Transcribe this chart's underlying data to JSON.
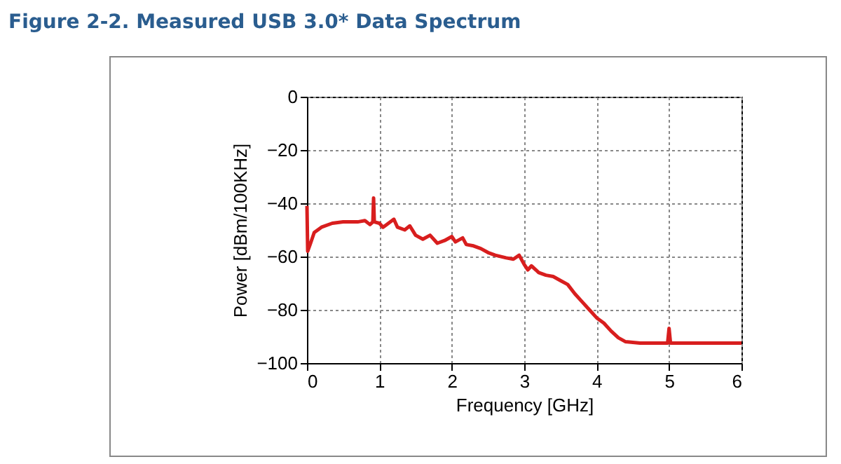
{
  "chart_data": {
    "type": "line",
    "title": "Figure 2-2. Measured USB 3.0* Data Spectrum",
    "xlabel": "Frequency [GHz]",
    "ylabel": "Power [dBm/100KHz]",
    "x": [
      0,
      0.01,
      0.05,
      0.1,
      0.2,
      0.35,
      0.5,
      0.7,
      0.8,
      0.87,
      0.91,
      0.92,
      0.93,
      1.0,
      1.05,
      1.1,
      1.2,
      1.25,
      1.35,
      1.42,
      1.5,
      1.6,
      1.7,
      1.8,
      1.9,
      2.0,
      2.05,
      2.15,
      2.2,
      2.3,
      2.4,
      2.5,
      2.6,
      2.75,
      2.85,
      2.93,
      3.0,
      3.05,
      3.1,
      3.2,
      3.3,
      3.4,
      3.5,
      3.6,
      3.7,
      3.8,
      3.9,
      4.0,
      4.1,
      4.2,
      4.3,
      4.4,
      4.6,
      4.9,
      4.98,
      5.0,
      5.02,
      5.3,
      5.6,
      6.0
    ],
    "series": [
      {
        "color": "#d81e1e",
        "values": [
          -41,
          -58,
          -55,
          -51,
          -49,
          -47.5,
          -47,
          -47,
          -46.5,
          -48,
          -47,
          -38,
          -47,
          -47.5,
          -49,
          -48,
          -46,
          -49,
          -50,
          -48.5,
          -52,
          -53.5,
          -52,
          -55,
          -54,
          -52.5,
          -54.5,
          -53,
          -55.5,
          -56,
          -57,
          -58.5,
          -59.5,
          -60.5,
          -61,
          -59.5,
          -63,
          -65,
          -63.5,
          -66,
          -67,
          -67.5,
          -69,
          -70.5,
          -74,
          -77,
          -80,
          -83,
          -85,
          -88,
          -90.5,
          -92,
          -92.5,
          -92.5,
          -92.5,
          -87,
          -92.5,
          -92.5,
          -92.5,
          -92.5
        ]
      }
    ],
    "xlim": [
      0,
      6
    ],
    "xticks": [
      0,
      1,
      2,
      3,
      4,
      5,
      6
    ],
    "ylim": [
      -100,
      0
    ],
    "yticks": [
      -100,
      -80,
      -60,
      -40,
      -20,
      0
    ],
    "grid": true,
    "line_style": "solid",
    "marker": "none"
  }
}
